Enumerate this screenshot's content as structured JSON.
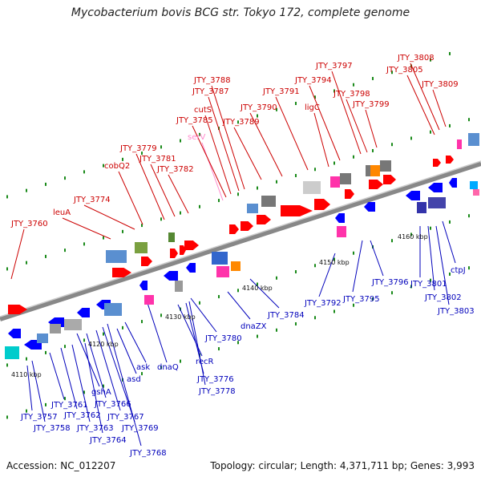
{
  "title": "Mycobacterium bovis BCG str. Tokyo 172, complete genome",
  "footer": {
    "accession": "Accession: NC_012207",
    "summary": "Topology: circular; Length: 4,371,711 bp; Genes: 3,993"
  },
  "colors": {
    "forward_gene": "#ff0000",
    "reverse_gene": "#0000ff",
    "backbone": "#888888",
    "tick_dot": "#1a8a1a",
    "top_label": "#cc0000",
    "bottom_label": "#0000bb",
    "rna_label": "#ff88cc"
  },
  "ticks": [
    "4110 kbp",
    "4120 kbp",
    "4130 kbp",
    "4140 kbp",
    "4150 kbp",
    "4160 kbp"
  ],
  "top_labels": [
    "JTY_3760",
    "leuA",
    "JTY_3774",
    "cobQ2",
    "JTY_3779",
    "JTY_3781",
    "JTY_3782",
    "serV",
    "JTY_3785",
    "cutS",
    "JTY_3787",
    "JTY_3788",
    "JTY_3789",
    "JTY_3790",
    "JTY_3791",
    "ligC",
    "JTY_3794",
    "JTY_3797",
    "JTY_3798",
    "JTY_3799",
    "JTY_3805",
    "JTY_3808",
    "JTY_3809"
  ],
  "bottom_labels": [
    "JTY_3757",
    "JTY_3758",
    "JTY_3761",
    "JTY_3762",
    "JTY_3763",
    "JTY_3764",
    "gshA",
    "JTY_3766",
    "JTY_3767",
    "JTY_3768",
    "JTY_3769",
    "asd",
    "ask",
    "dnaQ",
    "recR",
    "JTY_3776",
    "JTY_3778",
    "JTY_3780",
    "dnaZX",
    "JTY_3784",
    "JTY_3792",
    "JTY_3795",
    "JTY_3796",
    "JTY_3801",
    "JTY_3802",
    "JTY_3803",
    "ctpJ"
  ]
}
